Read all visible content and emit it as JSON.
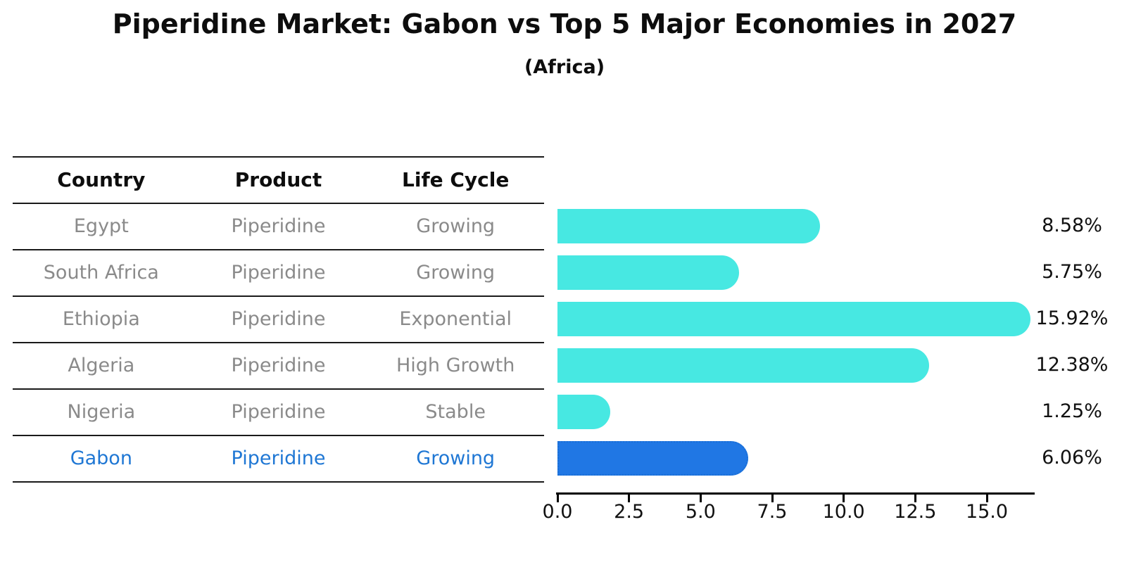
{
  "title": "Piperidine Market: Gabon vs Top 5 Major Economies in 2027",
  "subtitle": "(Africa)",
  "table": {
    "headers": [
      "Country",
      "Product",
      "Life Cycle"
    ],
    "rows": [
      {
        "country": "Egypt",
        "product": "Piperidine",
        "life_cycle": "Growing",
        "highlight": false
      },
      {
        "country": "South Africa",
        "product": "Piperidine",
        "life_cycle": "Growing",
        "highlight": false
      },
      {
        "country": "Ethiopia",
        "product": "Piperidine",
        "life_cycle": "Exponential",
        "highlight": false
      },
      {
        "country": "Algeria",
        "product": "Piperidine",
        "life_cycle": "High Growth",
        "highlight": false
      },
      {
        "country": "Nigeria",
        "product": "Piperidine",
        "life_cycle": "Stable",
        "highlight": false
      },
      {
        "country": "Gabon",
        "product": "Piperidine",
        "life_cycle": "Growing",
        "highlight": true
      }
    ]
  },
  "chart_data": {
    "type": "bar",
    "orientation": "horizontal",
    "title": "Piperidine Market: Gabon vs Top 5 Major Economies in 2027",
    "subtitle": "(Africa)",
    "categories": [
      "Egypt",
      "South Africa",
      "Ethiopia",
      "Algeria",
      "Nigeria",
      "Gabon"
    ],
    "values": [
      8.58,
      5.75,
      15.92,
      12.38,
      1.25,
      6.06
    ],
    "value_labels": [
      "8.58%",
      "5.75%",
      "15.92%",
      "12.38%",
      "1.25%",
      "6.06%"
    ],
    "highlight_index": 5,
    "xlabel": "",
    "ylabel": "",
    "xlim": [
      0,
      16.6
    ],
    "xticks": [
      "0.0",
      "2.5",
      "5.0",
      "7.5",
      "10.0",
      "12.5",
      "15.0"
    ],
    "grid": false,
    "legend": "none",
    "colors": {
      "bar_default": "#47e8e2",
      "bar_highlight": "#2077e4",
      "bar_highlight_border": "#1a6fd6",
      "highlight_text": "#1f77d4",
      "table_text": "#8a8a8a",
      "axis": "#000000"
    }
  }
}
